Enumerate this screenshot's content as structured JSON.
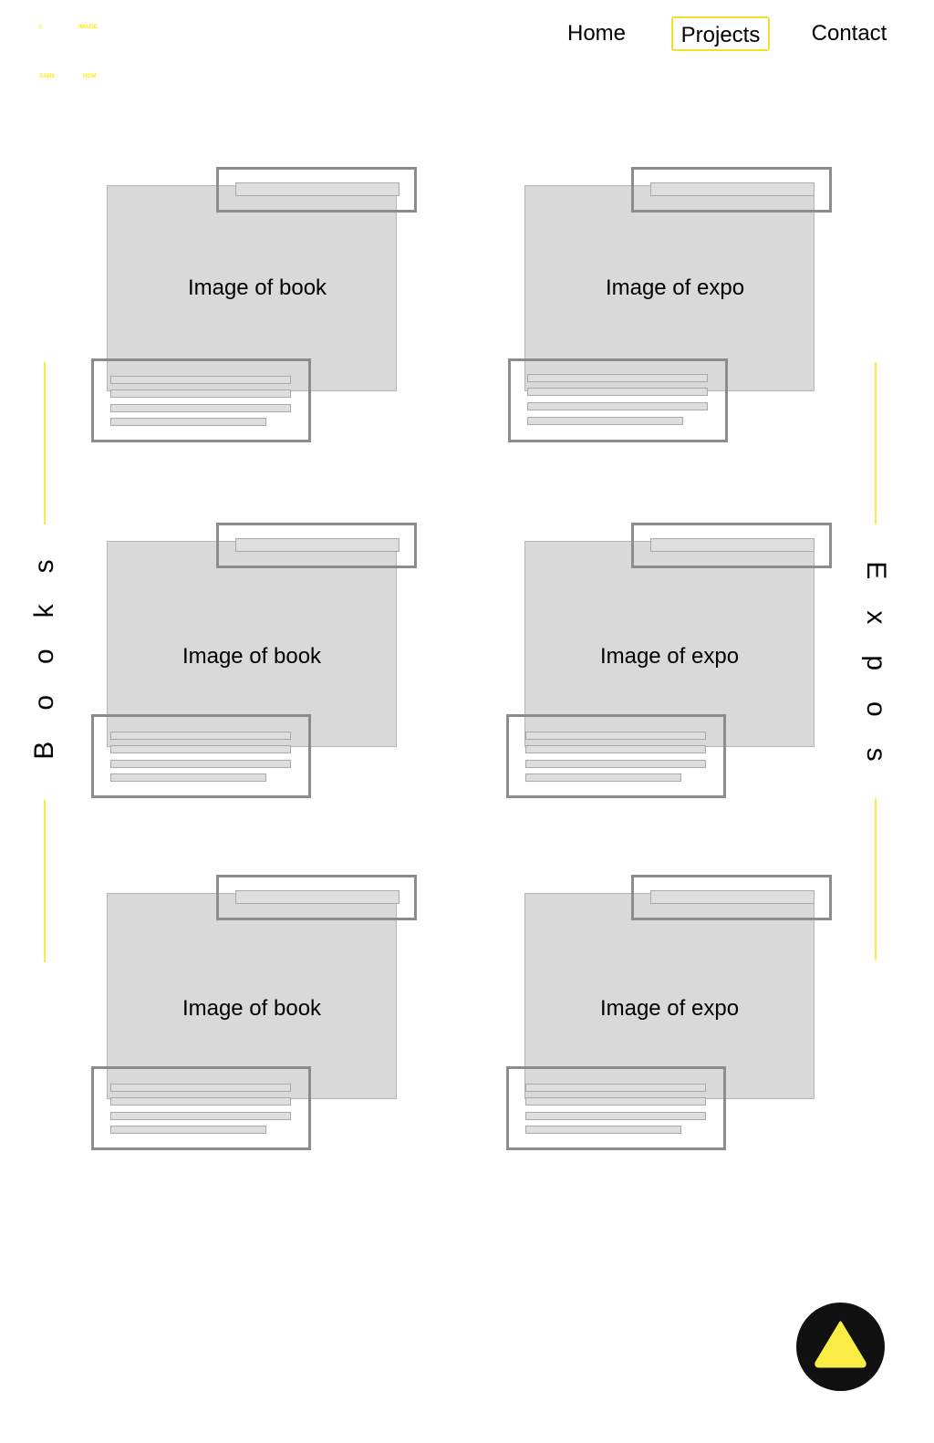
{
  "logo": {
    "words": [
      "L",
      "IMAGE",
      "SANS",
      "NOM"
    ],
    "color": "#ffee00"
  },
  "nav": {
    "items": [
      {
        "label": "Home",
        "active": false
      },
      {
        "label": "Projects",
        "active": true
      },
      {
        "label": "Contact",
        "active": false
      }
    ]
  },
  "sections": {
    "books": {
      "label": "Books"
    },
    "expos": {
      "label": "Expos"
    }
  },
  "books": [
    {
      "image_label": "Image of book"
    },
    {
      "image_label": "Image of book"
    },
    {
      "image_label": "Image of book"
    }
  ],
  "expos": [
    {
      "image_label": "Image of expo"
    },
    {
      "image_label": "Image of expo"
    },
    {
      "image_label": "Image of expo"
    }
  ],
  "colors": {
    "accent": "#f8ec45",
    "frame": "#8c8c8c",
    "placeholder": "#d9d9d9",
    "fab": "#111111"
  },
  "fab": {
    "icon": "up-triangle-icon"
  }
}
